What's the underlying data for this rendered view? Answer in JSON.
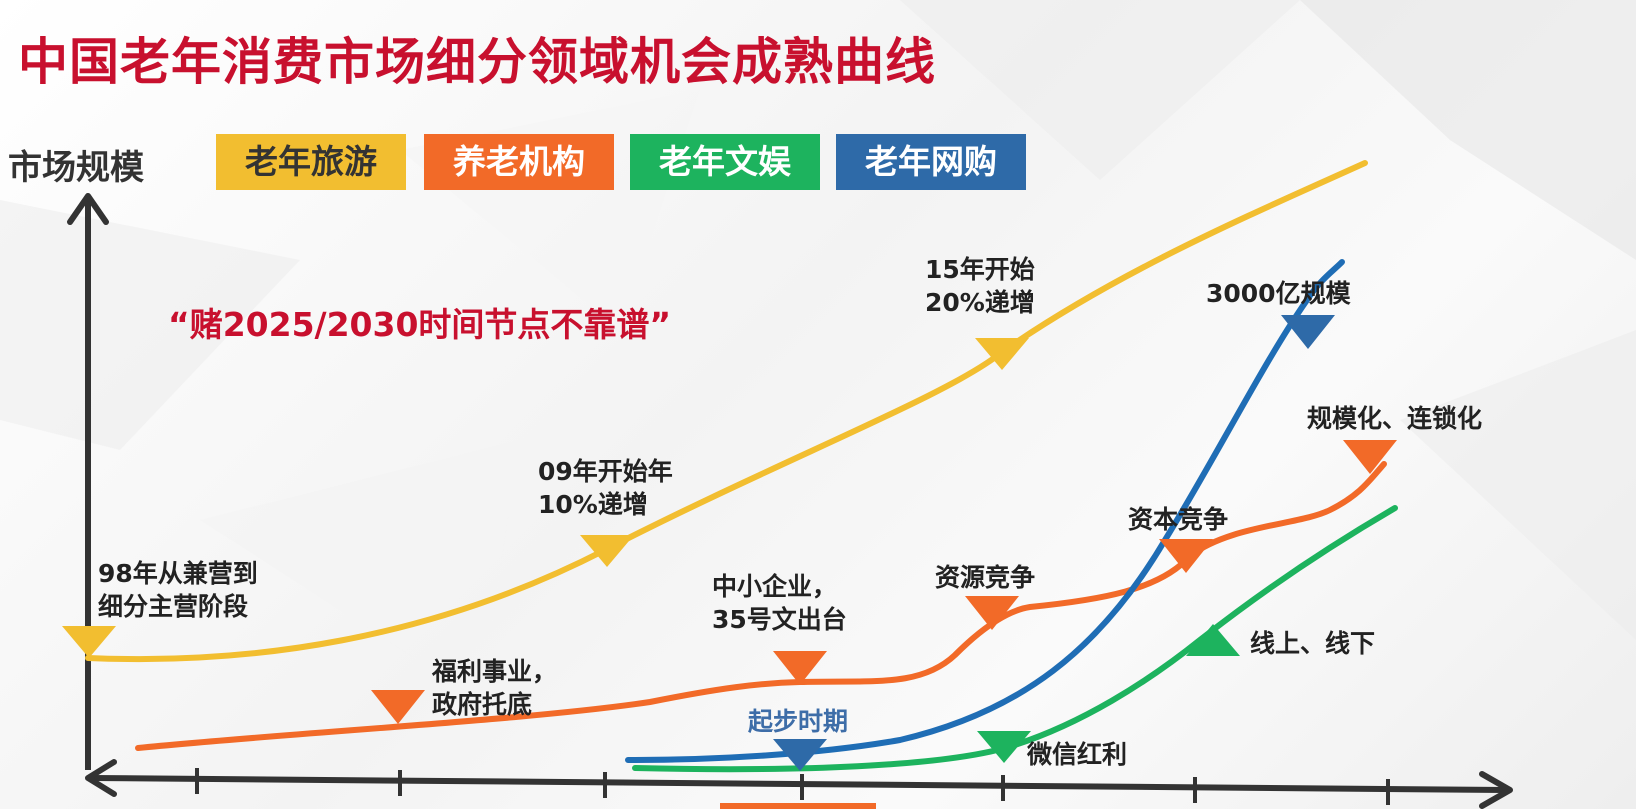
{
  "title": "中国老年消费市场细分领域机会成熟曲线",
  "y_axis_label": "市场规模",
  "legend": [
    {
      "label": "老年旅游",
      "bg": "#f2be30",
      "fg": "#333333"
    },
    {
      "label": "养老机构",
      "bg": "#f26a28",
      "fg": "#ffffff"
    },
    {
      "label": "老年文娱",
      "bg": "#1db35e",
      "fg": "#ffffff"
    },
    {
      "label": "老年网购",
      "bg": "#2e6aa8",
      "fg": "#ffffff"
    }
  ],
  "quote": "“赌2025/2030时间节点不靠谱”",
  "colors": {
    "tourism": "#f2be30",
    "institution": "#f26a28",
    "entertainment": "#1db35e",
    "shopping": "#1f6db5",
    "axis": "#333333",
    "title": "#c8102e"
  },
  "annotations": {
    "tourism_1": {
      "lines": [
        "98年从兼营到",
        "细分主营阶段"
      ]
    },
    "tourism_2": {
      "lines": [
        "09年开始年",
        "10%递增"
      ]
    },
    "tourism_3": {
      "lines": [
        "15年开始",
        "20%递增"
      ]
    },
    "inst_1": {
      "lines": [
        "福利事业，",
        "政府托底"
      ]
    },
    "inst_2": {
      "lines": [
        "中小企业，",
        "35号文出台"
      ]
    },
    "inst_3": {
      "lines": [
        "资源竞争"
      ]
    },
    "inst_4": {
      "lines": [
        "资本竞争"
      ]
    },
    "inst_5": {
      "lines": [
        "规模化、连锁化"
      ]
    },
    "shop_1": {
      "lines": [
        "起步时期"
      ]
    },
    "shop_2": {
      "lines": [
        "3000亿规模"
      ]
    },
    "ent_1": {
      "lines": [
        "微信红利"
      ]
    },
    "ent_2": {
      "lines": [
        "线上、线下"
      ]
    }
  }
}
